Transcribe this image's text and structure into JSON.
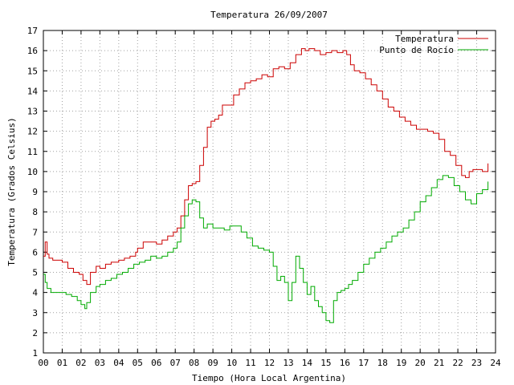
{
  "chart_data": {
    "type": "line",
    "title": "Temperatura 26/09/2007",
    "xlabel": "Tiempo (Hora Local Argentina)",
    "ylabel": "Temperatura (Grados Celsius)",
    "xlim": [
      0,
      24
    ],
    "ylim": [
      1,
      17
    ],
    "grid": true,
    "legend_position": "top-right",
    "x_tick_labels": [
      "00",
      "01",
      "02",
      "03",
      "04",
      "05",
      "06",
      "07",
      "08",
      "09",
      "10",
      "11",
      "12",
      "13",
      "14",
      "15",
      "16",
      "17",
      "18",
      "19",
      "20",
      "21",
      "22",
      "23",
      "24"
    ],
    "y_tick_labels": [
      "1",
      "2",
      "3",
      "4",
      "5",
      "6",
      "7",
      "8",
      "9",
      "10",
      "11",
      "12",
      "13",
      "14",
      "15",
      "16",
      "17"
    ],
    "series": [
      {
        "name": "Temperatura",
        "color": "#cc0000",
        "x": [
          0.0,
          0.1,
          0.2,
          0.3,
          0.5,
          0.8,
          1.0,
          1.3,
          1.6,
          1.9,
          2.1,
          2.3,
          2.5,
          2.8,
          3.0,
          3.3,
          3.6,
          4.0,
          4.3,
          4.6,
          4.9,
          5.0,
          5.3,
          5.6,
          6.0,
          6.3,
          6.6,
          6.9,
          7.1,
          7.3,
          7.5,
          7.7,
          7.9,
          8.1,
          8.3,
          8.5,
          8.7,
          8.9,
          9.1,
          9.3,
          9.5,
          9.8,
          10.1,
          10.4,
          10.7,
          11.0,
          11.3,
          11.6,
          11.9,
          12.2,
          12.5,
          12.8,
          13.1,
          13.4,
          13.7,
          13.9,
          14.1,
          14.4,
          14.7,
          15.0,
          15.3,
          15.6,
          15.9,
          16.1,
          16.3,
          16.5,
          16.8,
          17.1,
          17.4,
          17.7,
          18.0,
          18.3,
          18.6,
          18.9,
          19.2,
          19.5,
          19.8,
          20.1,
          20.4,
          20.7,
          21.0,
          21.3,
          21.6,
          21.9,
          22.2,
          22.4,
          22.6,
          22.8,
          23.0,
          23.3,
          23.6
        ],
        "values": [
          5.8,
          6.5,
          5.9,
          5.7,
          5.6,
          5.6,
          5.5,
          5.2,
          5.0,
          4.9,
          4.6,
          4.4,
          5.0,
          5.3,
          5.2,
          5.4,
          5.5,
          5.6,
          5.7,
          5.8,
          6.0,
          6.2,
          6.5,
          6.5,
          6.4,
          6.6,
          6.8,
          7.0,
          7.2,
          7.8,
          8.6,
          9.3,
          9.4,
          9.5,
          10.3,
          11.2,
          12.2,
          12.5,
          12.6,
          12.8,
          13.3,
          13.3,
          13.8,
          14.1,
          14.4,
          14.5,
          14.6,
          14.8,
          14.7,
          15.1,
          15.2,
          15.1,
          15.4,
          15.8,
          16.1,
          16.0,
          16.1,
          16.0,
          15.8,
          15.9,
          16.0,
          15.9,
          16.0,
          15.8,
          15.3,
          15.0,
          14.9,
          14.6,
          14.3,
          14.0,
          13.6,
          13.2,
          13.0,
          12.7,
          12.5,
          12.3,
          12.1,
          12.1,
          12.0,
          11.9,
          11.6,
          11.0,
          10.8,
          10.3,
          9.8,
          9.7,
          10.0,
          10.1,
          10.1,
          10.0,
          10.4
        ]
      },
      {
        "name": "Punto de Rocío",
        "color": "#00aa00",
        "x": [
          0.0,
          0.1,
          0.2,
          0.4,
          0.6,
          0.9,
          1.2,
          1.5,
          1.8,
          2.0,
          2.2,
          2.3,
          2.5,
          2.8,
          3.0,
          3.3,
          3.6,
          3.9,
          4.2,
          4.5,
          4.8,
          5.1,
          5.4,
          5.7,
          6.0,
          6.3,
          6.6,
          6.9,
          7.1,
          7.3,
          7.5,
          7.7,
          7.9,
          8.1,
          8.3,
          8.5,
          8.7,
          9.0,
          9.3,
          9.6,
          9.9,
          10.2,
          10.5,
          10.8,
          11.1,
          11.4,
          11.7,
          12.0,
          12.2,
          12.4,
          12.6,
          12.8,
          13.0,
          13.2,
          13.4,
          13.6,
          13.8,
          14.0,
          14.2,
          14.4,
          14.6,
          14.8,
          15.0,
          15.2,
          15.4,
          15.6,
          15.8,
          16.0,
          16.2,
          16.4,
          16.7,
          17.0,
          17.3,
          17.6,
          17.9,
          18.2,
          18.5,
          18.8,
          19.1,
          19.4,
          19.7,
          20.0,
          20.3,
          20.6,
          20.9,
          21.2,
          21.5,
          21.8,
          22.1,
          22.4,
          22.7,
          23.0,
          23.3,
          23.6
        ],
        "values": [
          4.9,
          4.5,
          4.2,
          4.0,
          4.0,
          4.0,
          3.9,
          3.8,
          3.6,
          3.4,
          3.2,
          3.5,
          4.0,
          4.3,
          4.4,
          4.6,
          4.7,
          4.9,
          5.0,
          5.2,
          5.4,
          5.5,
          5.6,
          5.8,
          5.7,
          5.8,
          6.0,
          6.2,
          6.5,
          7.2,
          7.8,
          8.4,
          8.6,
          8.5,
          7.7,
          7.2,
          7.4,
          7.2,
          7.2,
          7.1,
          7.3,
          7.3,
          7.0,
          6.7,
          6.3,
          6.2,
          6.1,
          6.0,
          5.3,
          4.6,
          4.8,
          4.5,
          3.6,
          4.5,
          5.8,
          5.2,
          4.5,
          3.9,
          4.3,
          3.6,
          3.3,
          3.0,
          2.6,
          2.5,
          3.6,
          4.0,
          4.1,
          4.2,
          4.4,
          4.6,
          5.0,
          5.4,
          5.7,
          6.0,
          6.2,
          6.5,
          6.8,
          7.0,
          7.2,
          7.6,
          8.0,
          8.5,
          8.8,
          9.2,
          9.6,
          9.8,
          9.7,
          9.3,
          9.0,
          8.6,
          8.4,
          8.9,
          9.1,
          9.5
        ]
      }
    ]
  }
}
